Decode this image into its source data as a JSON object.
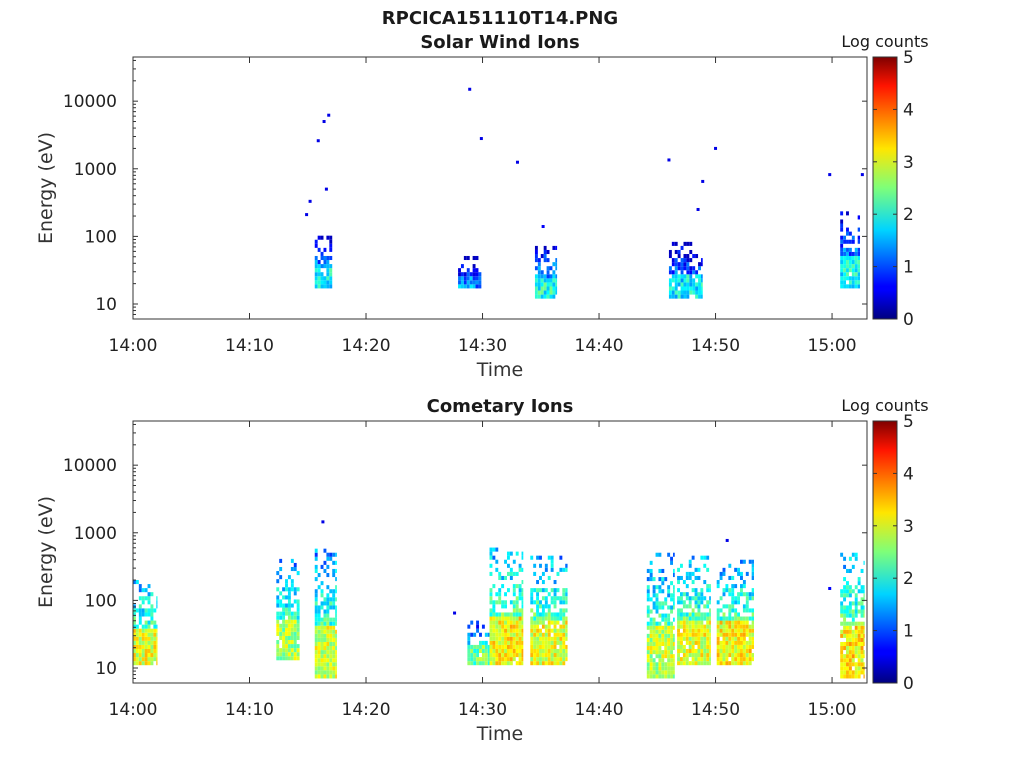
{
  "figure": {
    "suptitle": "RPCICA151110T14.PNG"
  },
  "panels": [
    {
      "title": "Solar Wind Ions",
      "xlabel": "Time",
      "ylabel": "Energy (eV)",
      "colorbar_label": "Log counts"
    },
    {
      "title": "Cometary Ions",
      "xlabel": "Time",
      "ylabel": "Energy (eV)",
      "colorbar_label": "Log counts"
    }
  ],
  "chart_data": [
    {
      "type": "heatmap",
      "title": "Solar Wind Ions",
      "xlabel": "Time",
      "ylabel": "Energy (eV)",
      "colorbar_label": "Log counts",
      "x_range_minutes_after_1400": [
        0,
        63
      ],
      "x_ticks": [
        "14:00",
        "14:10",
        "14:20",
        "14:30",
        "14:40",
        "14:50",
        "15:00"
      ],
      "y_scale": "log",
      "y_range": [
        6,
        45000
      ],
      "y_ticks": [
        "10",
        "100",
        "1000",
        "10000"
      ],
      "colorbar_range": [
        0,
        5
      ],
      "colorbar_ticks": [
        "0",
        "1",
        "2",
        "3",
        "4",
        "5"
      ],
      "colormap": "jet",
      "grid": false,
      "clusters": [
        {
          "t_start": 15.6,
          "t_end": 17.1,
          "e_min": 17,
          "e_max": 95,
          "level": 1.3,
          "hot": 1.9
        },
        {
          "t_start": 27.9,
          "t_end": 29.9,
          "e_min": 17,
          "e_max": 45,
          "level": 0.9,
          "hot": 1.3
        },
        {
          "t_start": 34.5,
          "t_end": 36.4,
          "e_min": 12,
          "e_max": 65,
          "level": 1.4,
          "hot": 2.0
        },
        {
          "t_start": 46.0,
          "t_end": 48.9,
          "e_min": 12,
          "e_max": 75,
          "level": 1.1,
          "hot": 1.8
        },
        {
          "t_start": 60.7,
          "t_end": 62.4,
          "e_min": 17,
          "e_max": 230,
          "level": 1.2,
          "hot": 1.9
        }
      ],
      "isolated_points": [
        {
          "t": 14.9,
          "e": 210,
          "level": 0.5
        },
        {
          "t": 15.2,
          "e": 330,
          "level": 0.5
        },
        {
          "t": 15.9,
          "e": 2600,
          "level": 0.5
        },
        {
          "t": 16.4,
          "e": 5000,
          "level": 0.5
        },
        {
          "t": 16.8,
          "e": 6200,
          "level": 0.5
        },
        {
          "t": 16.6,
          "e": 500,
          "level": 0.5
        },
        {
          "t": 28.9,
          "e": 15000,
          "level": 0.5
        },
        {
          "t": 29.9,
          "e": 2800,
          "level": 0.5
        },
        {
          "t": 33.0,
          "e": 1250,
          "level": 0.5
        },
        {
          "t": 35.2,
          "e": 140,
          "level": 0.6
        },
        {
          "t": 46.0,
          "e": 1350,
          "level": 0.5
        },
        {
          "t": 48.9,
          "e": 650,
          "level": 0.5
        },
        {
          "t": 48.5,
          "e": 250,
          "level": 0.5
        },
        {
          "t": 50.0,
          "e": 2000,
          "level": 0.5
        },
        {
          "t": 59.8,
          "e": 820,
          "level": 0.5
        },
        {
          "t": 62.6,
          "e": 820,
          "level": 0.5
        }
      ]
    },
    {
      "type": "heatmap",
      "title": "Cometary Ions",
      "xlabel": "Time",
      "ylabel": "Energy (eV)",
      "colorbar_label": "Log counts",
      "x_range_minutes_after_1400": [
        0,
        63
      ],
      "x_ticks": [
        "14:00",
        "14:10",
        "14:20",
        "14:30",
        "14:40",
        "14:50",
        "15:00"
      ],
      "y_scale": "log",
      "y_range": [
        6,
        45000
      ],
      "y_ticks": [
        "10",
        "100",
        "1000",
        "10000"
      ],
      "colorbar_range": [
        0,
        5
      ],
      "colorbar_ticks": [
        "0",
        "1",
        "2",
        "3",
        "4",
        "5"
      ],
      "colormap": "jet",
      "grid": false,
      "clusters": [
        {
          "t_start": 0.0,
          "t_end": 2.1,
          "e_min": 11,
          "e_max": 190,
          "level": 2.3,
          "hot": 3.0
        },
        {
          "t_start": 12.3,
          "t_end": 14.3,
          "e_min": 13,
          "e_max": 400,
          "level": 2.1,
          "hot": 2.7
        },
        {
          "t_start": 15.6,
          "t_end": 17.5,
          "e_min": 7,
          "e_max": 550,
          "level": 2.2,
          "hot": 2.9
        },
        {
          "t_start": 28.7,
          "t_end": 30.6,
          "e_min": 11,
          "e_max": 45,
          "level": 1.8,
          "hot": 2.4
        },
        {
          "t_start": 30.6,
          "t_end": 33.5,
          "e_min": 11,
          "e_max": 550,
          "level": 2.4,
          "hot": 3.1
        },
        {
          "t_start": 34.1,
          "t_end": 37.3,
          "e_min": 11,
          "e_max": 450,
          "level": 2.3,
          "hot": 3.0
        },
        {
          "t_start": 44.1,
          "t_end": 46.5,
          "e_min": 7,
          "e_max": 450,
          "level": 2.2,
          "hot": 2.8
        },
        {
          "t_start": 46.7,
          "t_end": 49.6,
          "e_min": 11,
          "e_max": 450,
          "level": 2.3,
          "hot": 3.0
        },
        {
          "t_start": 50.1,
          "t_end": 53.3,
          "e_min": 11,
          "e_max": 380,
          "level": 2.3,
          "hot": 3.1
        },
        {
          "t_start": 60.7,
          "t_end": 62.8,
          "e_min": 7,
          "e_max": 450,
          "level": 2.4,
          "hot": 3.2
        }
      ],
      "isolated_points": [
        {
          "t": 16.3,
          "e": 1450,
          "level": 0.5
        },
        {
          "t": 27.6,
          "e": 65,
          "level": 0.5
        },
        {
          "t": 51.0,
          "e": 770,
          "level": 0.5
        },
        {
          "t": 59.8,
          "e": 150,
          "level": 0.6
        }
      ]
    }
  ]
}
